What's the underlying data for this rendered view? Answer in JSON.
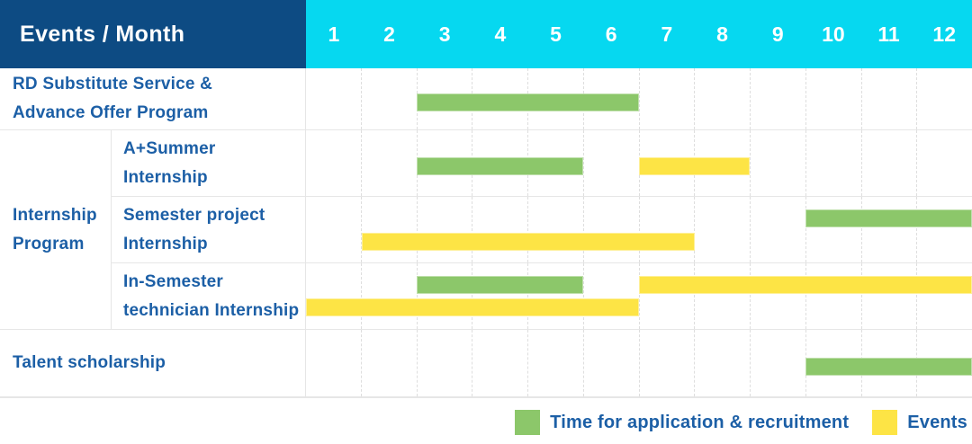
{
  "header": {
    "corner_label": "Events / Month",
    "months": [
      "1",
      "2",
      "3",
      "4",
      "5",
      "6",
      "7",
      "8",
      "9",
      "10",
      "11",
      "12"
    ]
  },
  "colors": {
    "header_navy": "#0d4b83",
    "month_cyan": "#06d8f0",
    "bar_green": "#8cc76a",
    "bar_yellow": "#fde445",
    "label_blue": "#1c5fa6"
  },
  "legend": {
    "items": [
      {
        "name": "application",
        "hex": "#8cc76a",
        "label": "Time for application & recruitment"
      },
      {
        "name": "events",
        "hex": "#fde445",
        "label": "Events"
      }
    ]
  },
  "chart_data": {
    "type": "bar",
    "subtype": "gantt-schedule",
    "title": "Events / Month",
    "xlabel": "Month",
    "x_ticks": [
      1,
      2,
      3,
      4,
      5,
      6,
      7,
      8,
      9,
      10,
      11,
      12
    ],
    "x_range": [
      1,
      12
    ],
    "grid": "vertical-dashed",
    "legend_position": "bottom-right",
    "series_legend": [
      {
        "color": "green",
        "label": "Time for application & recruitment"
      },
      {
        "color": "yellow",
        "label": "Events"
      }
    ],
    "rows": [
      {
        "group": null,
        "label_lines": [
          "RD Substitute Service &",
          "Advance Offer Program"
        ],
        "bars": [
          {
            "series": "Time for application & recruitment",
            "color": "green",
            "start_month": 3,
            "end_month": 6,
            "lane": "center"
          }
        ]
      },
      {
        "group": "Internship Program",
        "label_lines": [
          "A+Summer",
          "Internship"
        ],
        "bars": [
          {
            "series": "Time for application & recruitment",
            "color": "green",
            "start_month": 3,
            "end_month": 5,
            "lane": "center"
          },
          {
            "series": "Events",
            "color": "yellow",
            "start_month": 7,
            "end_month": 8,
            "lane": "center"
          }
        ]
      },
      {
        "group": "Internship Program",
        "label_lines": [
          "Semester project",
          "Internship"
        ],
        "bars": [
          {
            "series": "Time for application & recruitment",
            "color": "green",
            "start_month": 10,
            "end_month": 12,
            "lane": "top"
          },
          {
            "series": "Events",
            "color": "yellow",
            "start_month": 2,
            "end_month": 7,
            "lane": "bottom"
          }
        ]
      },
      {
        "group": "Internship Program",
        "label_lines": [
          "In-Semester",
          "technician Internship"
        ],
        "bars": [
          {
            "series": "Time for application & recruitment",
            "color": "green",
            "start_month": 3,
            "end_month": 5,
            "lane": "top"
          },
          {
            "series": "Events",
            "color": "yellow",
            "start_month": 7,
            "end_month": 12,
            "lane": "top"
          },
          {
            "series": "Events",
            "color": "yellow",
            "start_month": 1,
            "end_month": 6,
            "lane": "bottom"
          }
        ]
      },
      {
        "group": null,
        "label_lines": [
          "Talent scholarship"
        ],
        "bars": [
          {
            "series": "Time for application & recruitment",
            "color": "green",
            "start_month": 10,
            "end_month": 12,
            "lane": "center"
          }
        ]
      }
    ]
  }
}
